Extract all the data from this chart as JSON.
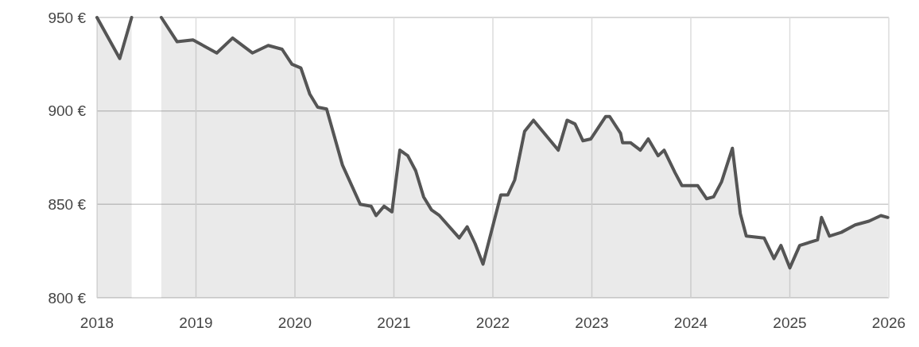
{
  "chart_data": {
    "type": "area",
    "xlim": [
      2018,
      2026
    ],
    "xticks": [
      2018,
      2019,
      2020,
      2021,
      2022,
      2023,
      2024,
      2025,
      2026
    ],
    "ylim": [
      800,
      950
    ],
    "yticks": [
      {
        "value": 800,
        "label": "800 €"
      },
      {
        "value": 850,
        "label": "850 €"
      },
      {
        "value": 900,
        "label": "900 €"
      },
      {
        "value": 950,
        "label": "950 €"
      }
    ],
    "grid": true,
    "x": [
      2018.0,
      2018.23,
      2018.35,
      2018.5,
      2018.65,
      2018.81,
      2018.97,
      2019.21,
      2019.37,
      2019.57,
      2019.73,
      2019.87,
      2019.97,
      2020.06,
      2020.15,
      2020.23,
      2020.32,
      2020.48,
      2020.66,
      2020.77,
      2020.82,
      2020.9,
      2020.98,
      2021.06,
      2021.14,
      2021.22,
      2021.3,
      2021.38,
      2021.46,
      2021.66,
      2021.74,
      2021.82,
      2021.9,
      2022.08,
      2022.15,
      2022.22,
      2022.32,
      2022.41,
      2022.66,
      2022.75,
      2022.83,
      2022.91,
      2022.99,
      2023.14,
      2023.18,
      2023.29,
      2023.31,
      2023.39,
      2023.49,
      2023.57,
      2023.67,
      2023.73,
      2023.84,
      2023.91,
      2024.07,
      2024.16,
      2024.23,
      2024.31,
      2024.42,
      2024.5,
      2024.56,
      2024.74,
      2024.84,
      2024.91,
      2025.0,
      2025.1,
      2025.28,
      2025.32,
      2025.4,
      2025.52,
      2025.66,
      2025.8,
      2025.92,
      2025.99
    ],
    "series": [
      {
        "color": "#555555",
        "values": [
          950,
          928,
          950,
          null,
          950,
          937,
          938,
          931,
          939,
          931,
          935,
          933,
          925,
          923,
          909,
          902,
          901,
          871,
          850,
          849,
          844,
          849,
          846,
          879,
          876,
          868,
          854,
          847,
          844,
          832,
          838,
          829,
          818,
          855,
          855,
          863,
          889,
          895,
          879,
          895,
          893,
          884,
          885,
          897,
          897,
          888,
          883,
          883,
          879,
          885,
          876,
          879,
          867,
          860,
          860,
          853,
          854,
          862,
          880,
          845,
          833,
          832,
          821,
          828,
          816,
          828,
          831,
          843,
          833,
          835,
          839,
          841,
          844,
          843
        ]
      }
    ]
  }
}
